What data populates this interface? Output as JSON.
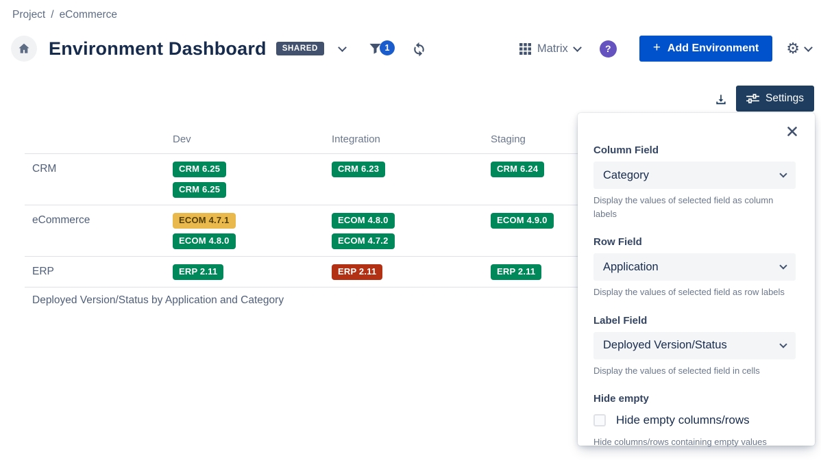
{
  "breadcrumb": {
    "items": [
      "Project",
      "eCommerce"
    ],
    "separator": "/"
  },
  "header": {
    "title": "Environment Dashboard",
    "shared_badge": "SHARED",
    "filter_count": "1",
    "view_label": "Matrix",
    "help_glyph": "?",
    "add_plus": "+",
    "add_label": "Add Environment",
    "gear_glyph": "⚙"
  },
  "toolbar": {
    "settings_label": "Settings"
  },
  "matrix": {
    "columns": [
      "Dev",
      "Integration",
      "Staging"
    ],
    "rows": [
      {
        "label": "CRM",
        "cells": [
          [
            {
              "text": "CRM 6.25",
              "color": "green"
            },
            {
              "text": "CRM 6.25",
              "color": "green"
            }
          ],
          [
            {
              "text": "CRM 6.23",
              "color": "green"
            }
          ],
          [
            {
              "text": "CRM 6.24",
              "color": "green"
            }
          ]
        ]
      },
      {
        "label": "eCommerce",
        "cells": [
          [
            {
              "text": "ECOM 4.7.1",
              "color": "yellow"
            },
            {
              "text": "ECOM 4.8.0",
              "color": "green"
            }
          ],
          [
            {
              "text": "ECOM 4.8.0",
              "color": "green"
            },
            {
              "text": "ECOM 4.7.2",
              "color": "green"
            }
          ],
          [
            {
              "text": "ECOM 4.9.0",
              "color": "green"
            }
          ]
        ]
      },
      {
        "label": "ERP",
        "cells": [
          [
            {
              "text": "ERP 2.11",
              "color": "green"
            }
          ],
          [
            {
              "text": "ERP 2.11",
              "color": "red"
            }
          ],
          [
            {
              "text": "ERP 2.11",
              "color": "green"
            }
          ]
        ]
      }
    ],
    "caption": "Deployed Version/Status by Application and Category"
  },
  "settings_panel": {
    "fields": [
      {
        "label": "Column Field",
        "value": "Category",
        "help": "Display the values of selected field as column labels"
      },
      {
        "label": "Row Field",
        "value": "Application",
        "help": "Display the values of selected field as row labels"
      },
      {
        "label": "Label Field",
        "value": "Deployed Version/Status",
        "help": "Display the values of selected field in cells"
      }
    ],
    "hide_empty": {
      "label": "Hide empty",
      "checkbox_label": "Hide empty columns/rows",
      "help": "Hide columns/rows containing empty values",
      "checked": false
    }
  },
  "colors": {
    "accent_blue": "#0052CC",
    "filter_badge_blue": "#1A5CCC",
    "navy_button": "#1E3D5F",
    "shared_badge_bg": "#42526E",
    "help_purple": "#6554C0",
    "badge_green": "#00875A",
    "badge_yellow": "#E9B94D",
    "badge_yellow_text": "#533F04",
    "badge_red": "#B23115"
  }
}
